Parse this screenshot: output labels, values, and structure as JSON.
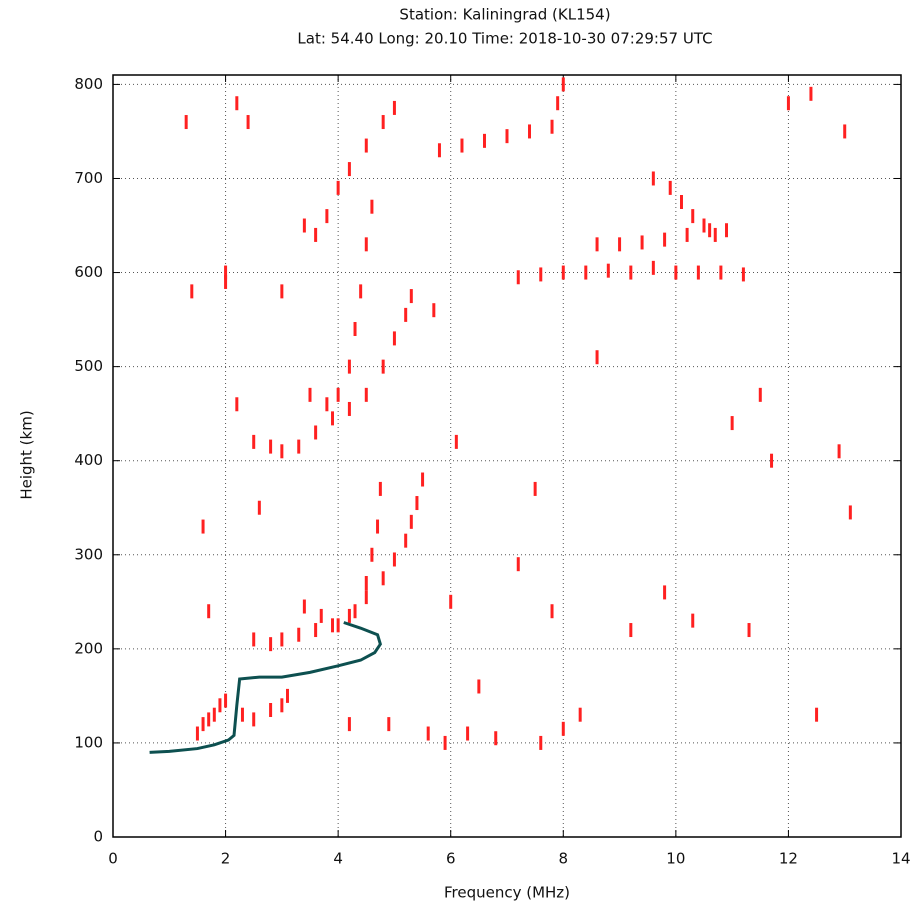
{
  "chart_data": {
    "type": "scatter",
    "title": "Station: Kaliningrad (KL154)",
    "subtitle": "Lat: 54.40 Long: 20.10 Time: 2018-10-30 07:29:57 UTC",
    "x_label": "Frequency (MHz)",
    "y_label": "Height (km)",
    "xlim": [
      0,
      14
    ],
    "ylim": [
      0,
      810
    ],
    "xticks": [
      0,
      2,
      4,
      6,
      8,
      10,
      12,
      14
    ],
    "yticks": [
      0,
      100,
      200,
      300,
      400,
      500,
      600,
      700,
      800
    ],
    "grid": true,
    "series": [
      {
        "color": "#ff2020",
        "mode": "markers",
        "x": [
          1.5,
          1.6,
          1.7,
          1.8,
          1.9,
          2.0,
          2.3,
          2.5,
          2.8,
          3.0,
          3.1,
          2.5,
          2.8,
          3.0,
          3.3,
          3.6,
          3.9,
          4.2,
          4.5,
          4.8,
          5.0,
          5.2,
          5.3,
          5.4,
          5.5,
          3.4,
          3.7,
          4.0,
          4.3,
          4.5,
          4.6,
          4.7,
          4.75,
          2.5,
          2.8,
          3.0,
          3.3,
          3.6,
          3.9,
          4.2,
          4.5,
          4.8,
          5.0,
          5.2,
          5.3,
          3.5,
          3.8,
          4.0,
          4.2,
          4.3,
          4.4,
          4.5,
          4.6,
          3.6,
          3.8,
          4.0,
          4.2,
          4.5,
          4.8,
          5.0,
          5.8,
          6.2,
          6.6,
          7.0,
          7.4,
          7.8,
          7.9,
          8.0,
          7.2,
          7.6,
          8.0,
          8.4,
          8.8,
          9.2,
          9.6,
          10.0,
          10.4,
          10.8,
          11.2,
          8.6,
          9.0,
          9.4,
          9.8,
          10.2,
          10.6,
          10.9,
          9.6,
          9.9,
          10.1,
          10.3,
          10.5,
          10.7,
          1.3,
          1.4,
          1.6,
          1.7,
          2.0,
          2.2,
          2.2,
          2.4,
          2.6,
          3.4,
          5.7,
          6.0,
          6.1,
          6.5,
          7.2,
          7.5,
          7.8,
          8.3,
          8.6,
          9.2,
          9.8,
          10.3,
          11.0,
          11.3,
          11.5,
          11.7,
          12.0,
          12.4,
          12.5,
          12.9,
          13.0,
          13.1,
          4.2,
          4.9,
          5.6,
          5.9,
          6.3,
          6.8,
          7.6,
          8.0,
          2.0,
          3.0
        ],
        "values": [
          110,
          120,
          125,
          130,
          140,
          145,
          130,
          125,
          135,
          140,
          150,
          210,
          205,
          210,
          215,
          220,
          225,
          235,
          255,
          275,
          295,
          315,
          335,
          355,
          380,
          245,
          235,
          225,
          240,
          270,
          300,
          330,
          370,
          420,
          415,
          410,
          415,
          430,
          445,
          455,
          470,
          500,
          530,
          555,
          575,
          470,
          460,
          470,
          500,
          540,
          580,
          630,
          670,
          640,
          660,
          690,
          710,
          735,
          760,
          775,
          730,
          735,
          740,
          745,
          750,
          755,
          780,
          800,
          595,
          598,
          600,
          600,
          602,
          600,
          605,
          600,
          600,
          600,
          598,
          630,
          630,
          632,
          635,
          640,
          645,
          645,
          700,
          690,
          675,
          660,
          650,
          640,
          760,
          580,
          330,
          240,
          600,
          460,
          780,
          760,
          350,
          650,
          560,
          250,
          420,
          160,
          290,
          370,
          240,
          130,
          510,
          220,
          260,
          230,
          440,
          220,
          470,
          400,
          780,
          790,
          130,
          410,
          750,
          345,
          120,
          120,
          110,
          100,
          110,
          105,
          100,
          115,
          590,
          580
        ]
      },
      {
        "color": "#0d5050",
        "mode": "line",
        "x": [
          0.65,
          1.0,
          1.5,
          1.8,
          2.05,
          2.15,
          2.2,
          2.25,
          2.6,
          3.0,
          3.5,
          4.0,
          4.4,
          4.65,
          4.75,
          4.7,
          4.4,
          4.1
        ],
        "values": [
          90,
          91,
          94,
          98,
          103,
          108,
          140,
          168,
          170,
          170,
          175,
          182,
          188,
          196,
          205,
          215,
          222,
          228
        ]
      }
    ]
  }
}
